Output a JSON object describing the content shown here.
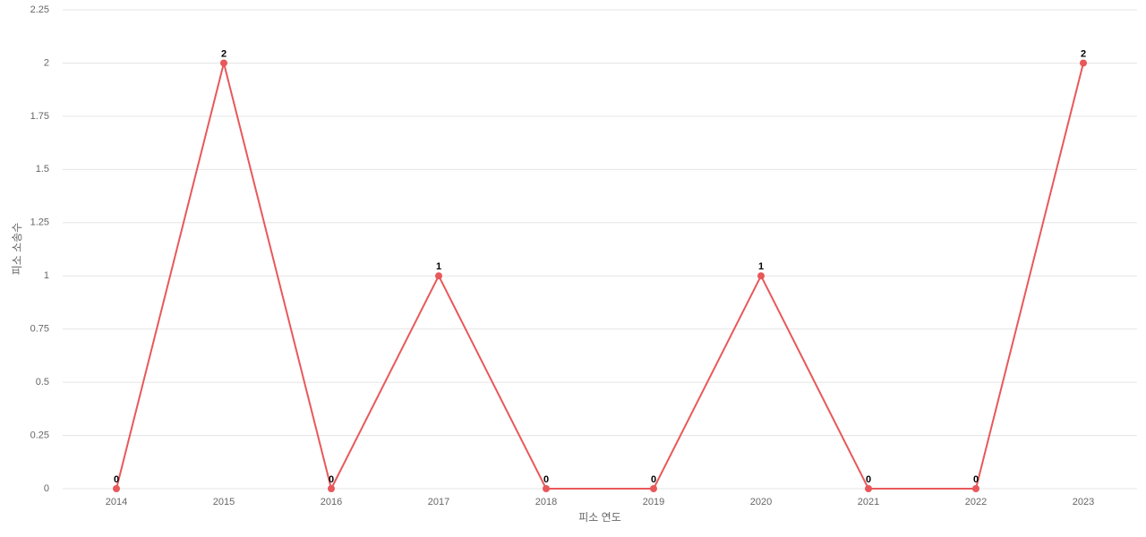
{
  "chart_data": {
    "type": "line",
    "x_label": "피소 연도",
    "y_label": "피소 소송수",
    "categories": [
      "2014",
      "2015",
      "2016",
      "2017",
      "2018",
      "2019",
      "2020",
      "2021",
      "2022",
      "2023"
    ],
    "values": [
      0,
      2,
      0,
      1,
      0,
      0,
      1,
      0,
      0,
      2
    ],
    "color": "#e8585a",
    "ylim": [
      0,
      2.25
    ],
    "yticks": [
      0,
      0.25,
      0.5,
      0.75,
      1,
      1.25,
      1.5,
      1.75,
      2,
      2.25
    ],
    "grid": true,
    "data_labels": true
  }
}
